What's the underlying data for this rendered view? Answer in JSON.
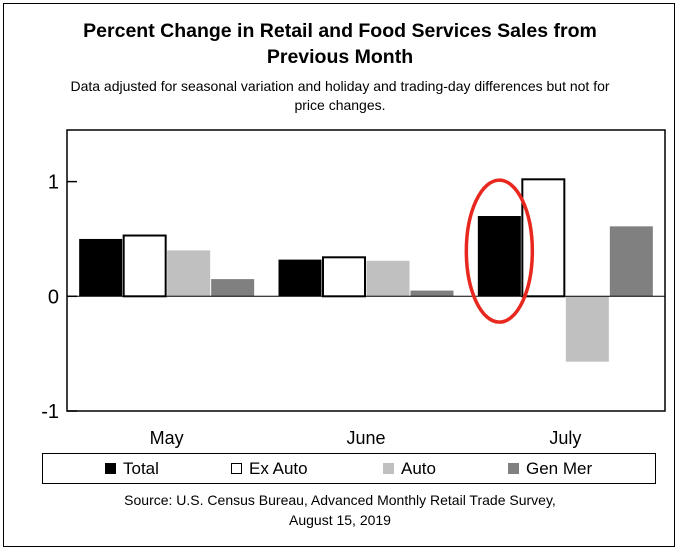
{
  "chart_data": {
    "type": "bar",
    "title_lines": [
      "Percent Change in Retail and Food Services Sales from",
      "Previous Month"
    ],
    "subtitle_lines": [
      "Data adjusted for seasonal variation and holiday and trading-day differences but not for",
      "price changes."
    ],
    "categories": [
      "May",
      "June",
      "July"
    ],
    "series": [
      {
        "name": "Total",
        "values": [
          0.5,
          0.32,
          0.7
        ],
        "color": "#000000"
      },
      {
        "name": "Ex Auto",
        "values": [
          0.53,
          0.34,
          1.02
        ],
        "color": "#ffffff"
      },
      {
        "name": "Auto",
        "values": [
          0.4,
          0.31,
          -0.57
        ],
        "color": "#c0c0c0"
      },
      {
        "name": "Gen Mer",
        "values": [
          0.15,
          0.05,
          0.61
        ],
        "color": "#808080"
      }
    ],
    "yticks": [
      "1",
      "0",
      "-1"
    ],
    "ytick_values": [
      1,
      0,
      -1
    ],
    "ylim": [
      -1,
      1.45
    ],
    "grid": false,
    "legend_position": "bottom",
    "highlight": {
      "category": "July",
      "series": "Total",
      "color": "#e8281e"
    },
    "source_lines": [
      "Source: U.S. Census Bureau, Advanced Monthly Retail Trade Survey,",
      "August 15, 2019"
    ]
  }
}
